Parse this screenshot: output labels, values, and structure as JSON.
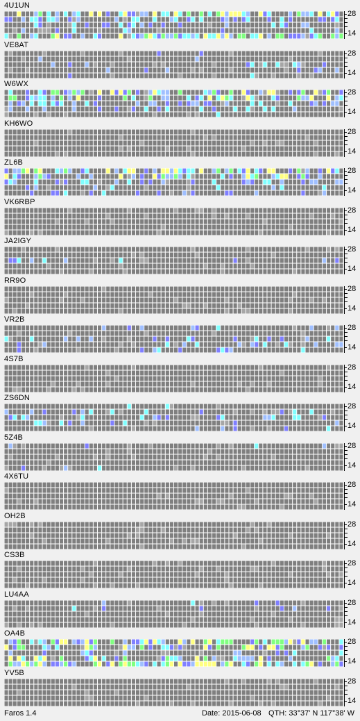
{
  "app": {
    "name": "Faros 1.4"
  },
  "status_bar": {
    "date_label": "Date: 2015-06-08",
    "qth_label": "QTH: 33°37' N  117°38' W"
  },
  "axis": {
    "top_label": "28",
    "bottom_label": "14"
  },
  "colors": {
    "background": "#f0f0f0",
    "cell_empty": "#7f7f7f",
    "cell_no_data": "#a6a6a6",
    "cell_weak": "#7f7fff",
    "cell_fair": "#9fbfff",
    "cell_good": "#80ffff",
    "cell_strong": "#80ff80",
    "cell_best": "#ffff80"
  },
  "beacons": [
    {
      "callsign": "4U1UN",
      "activity": [
        0.8,
        0.5,
        0.3,
        0.2,
        0.9
      ]
    },
    {
      "callsign": "VE8AT",
      "activity": [
        0.05,
        0.02,
        0.1,
        0.15,
        0.1
      ]
    },
    {
      "callsign": "W6WX",
      "activity": [
        0.7,
        0.6,
        0.4,
        0.2,
        0.05
      ]
    },
    {
      "callsign": "KH6WO",
      "activity": [
        0.0,
        0.0,
        0.0,
        0.0,
        0.0
      ]
    },
    {
      "callsign": "ZL6B",
      "activity": [
        0.8,
        0.6,
        0.5,
        0.1,
        0.2
      ]
    },
    {
      "callsign": "VK6RBP",
      "activity": [
        0.0,
        0.0,
        0.0,
        0.0,
        0.0
      ]
    },
    {
      "callsign": "JA2IGY",
      "activity": [
        0.0,
        0.0,
        0.1,
        0.0,
        0.0
      ]
    },
    {
      "callsign": "RR9O",
      "activity": [
        0.0,
        0.0,
        0.0,
        0.0,
        0.0
      ]
    },
    {
      "callsign": "VR2B",
      "activity": [
        0.1,
        0.0,
        0.2,
        0.3,
        0.2
      ]
    },
    {
      "callsign": "4S7B",
      "activity": [
        0.0,
        0.0,
        0.0,
        0.0,
        0.0
      ]
    },
    {
      "callsign": "ZS6DN",
      "activity": [
        0.05,
        0.1,
        0.2,
        0.15,
        0.05
      ]
    },
    {
      "callsign": "5Z4B",
      "activity": [
        0.1,
        0.0,
        0.0,
        0.0,
        0.05
      ]
    },
    {
      "callsign": "4X6TU",
      "activity": [
        0.0,
        0.0,
        0.0,
        0.0,
        0.0
      ]
    },
    {
      "callsign": "OH2B",
      "activity": [
        0.0,
        0.0,
        0.0,
        0.0,
        0.0
      ]
    },
    {
      "callsign": "CS3B",
      "activity": [
        0.0,
        0.0,
        0.0,
        0.0,
        0.0
      ]
    },
    {
      "callsign": "LU4AA",
      "activity": [
        0.05,
        0.05,
        0.0,
        0.0,
        0.0
      ]
    },
    {
      "callsign": "OA4B",
      "activity": [
        0.9,
        0.6,
        0.2,
        0.6,
        0.9
      ]
    },
    {
      "callsign": "YV5B",
      "activity": [
        0.0,
        0.0,
        0.0,
        0.0,
        0.0
      ]
    }
  ]
}
